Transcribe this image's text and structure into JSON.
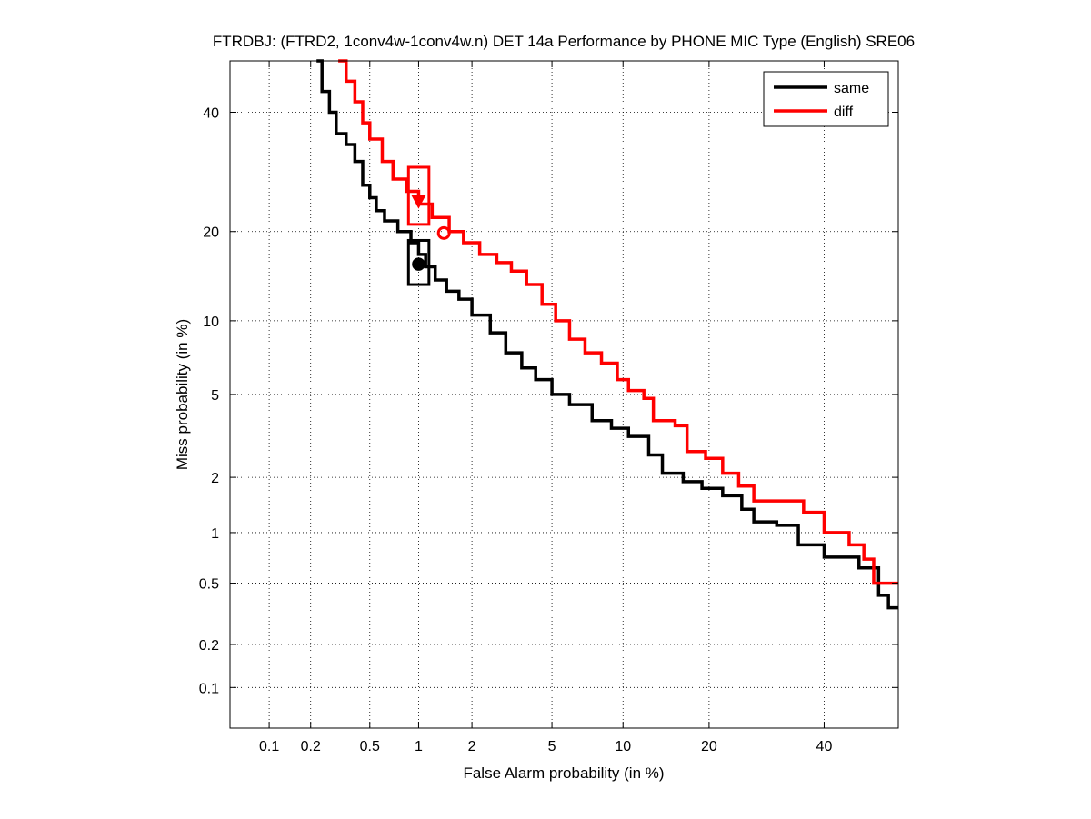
{
  "chart_data": {
    "type": "line",
    "title": "FTRDBJ: (FTRD2, 1conv4w-1conv4w.n) DET 14a Performance by PHONE MIC Type (English) SRE06",
    "xlabel": "False Alarm probability (in %)",
    "ylabel": "Miss probability (in %)",
    "x_scale": "probit",
    "y_scale": "probit",
    "xlim": [
      0.05,
      55
    ],
    "ylim": [
      0.05,
      50
    ],
    "x_ticks": [
      0.1,
      0.2,
      0.5,
      1,
      2,
      5,
      10,
      20,
      40
    ],
    "x_tick_labels": [
      "0.1",
      "0.2",
      "0.5",
      "1",
      "2",
      "5",
      "10",
      "20",
      "40"
    ],
    "y_ticks": [
      0.1,
      0.2,
      0.5,
      1,
      2,
      5,
      10,
      20,
      40
    ],
    "y_tick_labels": [
      "0.1",
      "0.2",
      "0.5",
      "1",
      "2",
      "5",
      "10",
      "20",
      "40"
    ],
    "grid": true,
    "legend_position": "top-right",
    "series": [
      {
        "name": "same",
        "color": "#000000",
        "points": [
          [
            0.22,
            50
          ],
          [
            0.24,
            44
          ],
          [
            0.27,
            40
          ],
          [
            0.3,
            36
          ],
          [
            0.35,
            34
          ],
          [
            0.4,
            31
          ],
          [
            0.45,
            27
          ],
          [
            0.5,
            25
          ],
          [
            0.55,
            23
          ],
          [
            0.62,
            21.5
          ],
          [
            0.75,
            20
          ],
          [
            0.9,
            18.5
          ],
          [
            1.0,
            17
          ],
          [
            1.1,
            15.5
          ],
          [
            1.25,
            14
          ],
          [
            1.45,
            12.8
          ],
          [
            1.7,
            12
          ],
          [
            2.0,
            10.5
          ],
          [
            2.5,
            9
          ],
          [
            3.0,
            7.5
          ],
          [
            3.6,
            6.5
          ],
          [
            4.2,
            5.8
          ],
          [
            5.0,
            5
          ],
          [
            6.0,
            4.5
          ],
          [
            7.5,
            3.8
          ],
          [
            9.0,
            3.5
          ],
          [
            10.5,
            3.2
          ],
          [
            12.5,
            2.6
          ],
          [
            14.0,
            2.1
          ],
          [
            16.5,
            1.9
          ],
          [
            19.0,
            1.75
          ],
          [
            22.0,
            1.6
          ],
          [
            25.0,
            1.35
          ],
          [
            27.0,
            1.15
          ],
          [
            31.0,
            1.1
          ],
          [
            35.0,
            0.85
          ],
          [
            40.0,
            0.72
          ],
          [
            44.0,
            0.72
          ],
          [
            47.0,
            0.62
          ],
          [
            51.0,
            0.42
          ],
          [
            53.0,
            0.35
          ],
          [
            55.0,
            0.35
          ]
        ]
      },
      {
        "name": "diff",
        "color": "#ff0000",
        "points": [
          [
            0.31,
            50
          ],
          [
            0.35,
            46
          ],
          [
            0.4,
            42
          ],
          [
            0.45,
            38
          ],
          [
            0.5,
            35
          ],
          [
            0.6,
            31
          ],
          [
            0.7,
            28
          ],
          [
            0.85,
            26
          ],
          [
            1.0,
            24
          ],
          [
            1.2,
            22
          ],
          [
            1.5,
            20
          ],
          [
            1.8,
            18.5
          ],
          [
            2.2,
            17
          ],
          [
            2.7,
            16
          ],
          [
            3.2,
            15
          ],
          [
            3.8,
            13.5
          ],
          [
            4.5,
            11.5
          ],
          [
            5.2,
            10
          ],
          [
            6.0,
            8.5
          ],
          [
            7.0,
            7.5
          ],
          [
            8.2,
            6.8
          ],
          [
            9.5,
            5.8
          ],
          [
            10.5,
            5.2
          ],
          [
            12.0,
            4.8
          ],
          [
            13.0,
            3.8
          ],
          [
            15.5,
            3.6
          ],
          [
            17.0,
            2.7
          ],
          [
            19.5,
            2.5
          ],
          [
            22.0,
            2.1
          ],
          [
            24.5,
            1.8
          ],
          [
            27.0,
            1.5
          ],
          [
            33.0,
            1.5
          ],
          [
            36.0,
            1.3
          ],
          [
            40.0,
            1.0
          ],
          [
            45.0,
            0.85
          ],
          [
            48.0,
            0.7
          ],
          [
            50.0,
            0.5
          ],
          [
            55.0,
            0.5
          ]
        ]
      }
    ],
    "markers": [
      {
        "series": "same",
        "shape": "box",
        "x_range": [
          0.87,
          1.15
        ],
        "y_range": [
          13.5,
          18.8
        ]
      },
      {
        "series": "same",
        "shape": "filled-circle",
        "x": 1.0,
        "y": 15.8
      },
      {
        "series": "diff",
        "shape": "box",
        "x_range": [
          0.87,
          1.15
        ],
        "y_range": [
          21,
          30
        ]
      },
      {
        "series": "diff",
        "shape": "filled-triangle-down",
        "x": 1.0,
        "y": 24.5
      },
      {
        "series": "diff",
        "shape": "open-circle",
        "x": 1.4,
        "y": 19.8
      }
    ]
  }
}
